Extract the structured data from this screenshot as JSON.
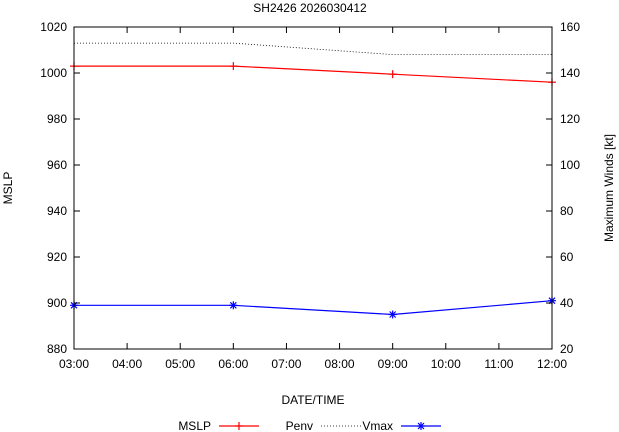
{
  "chart_data": {
    "type": "line",
    "title": "SH2426 2026030412",
    "xlabel": "DATE/TIME",
    "ylabel": "MSLP",
    "y2label": "Maximum Winds [kt]",
    "x_tick_labels": [
      "03:00",
      "04:00",
      "05:00",
      "06:00",
      "07:00",
      "08:00",
      "09:00",
      "10:00",
      "11:00",
      "12:00"
    ],
    "x_range_hours": [
      3,
      12
    ],
    "ylim": [
      880,
      1020
    ],
    "y_ticks": [
      880,
      900,
      920,
      940,
      960,
      980,
      1000,
      1020
    ],
    "y2lim": [
      20,
      160
    ],
    "y2_ticks": [
      20,
      40,
      60,
      80,
      100,
      120,
      140,
      160
    ],
    "legend_position": "bottom",
    "series": [
      {
        "name": "MSLP",
        "axis": "left",
        "color": "#ff0000",
        "line_style": "solid",
        "marker": "plus",
        "x": [
          3,
          6,
          9,
          12
        ],
        "values": [
          1003,
          1003,
          999.5,
          996
        ]
      },
      {
        "name": "Penv",
        "axis": "left",
        "color": "#000000",
        "line_style": "dotted",
        "marker": "none",
        "x": [
          3,
          6,
          9,
          12
        ],
        "values": [
          1013,
          1013,
          1008,
          1008
        ]
      },
      {
        "name": "Vmax",
        "axis": "right",
        "color": "#0000ff",
        "line_style": "solid",
        "marker": "star",
        "x": [
          3,
          6,
          9,
          12
        ],
        "values": [
          39,
          39,
          35,
          41
        ]
      }
    ]
  }
}
